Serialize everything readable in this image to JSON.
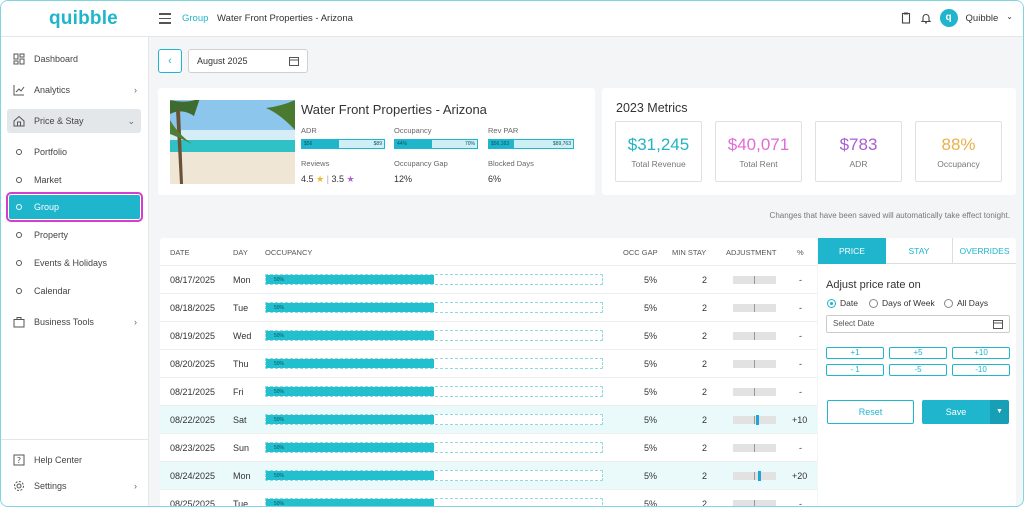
{
  "app": {
    "logo": "quibble"
  },
  "header": {
    "breadcrumb_root": "Group",
    "breadcrumb_current": "Water Front Properties - Arizona",
    "user": "Quibble",
    "avatar_letter": "q",
    "user_chevron": "⌄"
  },
  "sidebar": {
    "items": [
      {
        "label": "Dashboard",
        "icon": "dashboard-icon",
        "chevron": ""
      },
      {
        "label": "Analytics",
        "icon": "analytics-icon",
        "chevron": "›"
      },
      {
        "label": "Price & Stay",
        "icon": "price-stay-icon",
        "chevron": "⌄"
      },
      {
        "label": "Portfolio"
      },
      {
        "label": "Market"
      },
      {
        "label": "Group"
      },
      {
        "label": "Property"
      },
      {
        "label": "Events & Holidays"
      },
      {
        "label": "Calendar"
      },
      {
        "label": "Business Tools",
        "icon": "business-tools-icon",
        "chevron": "›"
      }
    ],
    "footer": [
      {
        "label": "Help Center",
        "icon": "help-icon",
        "chevron": ""
      },
      {
        "label": "Settings",
        "icon": "gear-icon",
        "chevron": "›"
      }
    ]
  },
  "toolbar": {
    "back": "‹",
    "month": "August 2025"
  },
  "property": {
    "title": "Water Front Properties - Arizona",
    "adr": {
      "label": "ADR",
      "min": "$56",
      "max": "$89",
      "fill": 0.45
    },
    "occupancy": {
      "label": "Occupancy",
      "min": "44%",
      "max": "70%",
      "fill": 0.45
    },
    "revpar": {
      "label": "Rev PAR",
      "min": "$56,163",
      "max": "$89,763",
      "fill": 0.3
    },
    "reviews": {
      "label": "Reviews",
      "a": "4.5",
      "b": "3.5",
      "star": "★",
      "sep": "|"
    },
    "occ_gap": {
      "label": "Occupancy Gap",
      "value": "12%"
    },
    "blocked": {
      "label": "Blocked Days",
      "value": "6%"
    }
  },
  "metrics": {
    "title": "2023 Metrics",
    "items": [
      {
        "value": "$31,245",
        "label": "Total Revenue",
        "color": "#22b3c4"
      },
      {
        "value": "$40,071",
        "label": "Total Rent",
        "color": "#e06cd8"
      },
      {
        "value": "$783",
        "label": "ADR",
        "color": "#a85fd1"
      },
      {
        "value": "88%",
        "label": "Occupancy",
        "color": "#e8b14a"
      }
    ]
  },
  "notice": "Changes that have been saved will automatically take effect tonight.",
  "table": {
    "headers": {
      "date": "DATE",
      "day": "DAY",
      "occupancy": "OCCUPANCY",
      "gap": "OCC GAP",
      "stay": "MIN STAY",
      "adj": "ADJUSTMENT",
      "pct": "%"
    },
    "rows": [
      {
        "date": "08/17/2025",
        "day": "Mon",
        "occ": "50%",
        "occ_value": 0.5,
        "gap": "5%",
        "stay": "2",
        "adj": 0,
        "pct": "-"
      },
      {
        "date": "08/18/2025",
        "day": "Tue",
        "occ": "50%",
        "occ_value": 0.5,
        "gap": "5%",
        "stay": "2",
        "adj": 0,
        "pct": "-"
      },
      {
        "date": "08/19/2025",
        "day": "Wed",
        "occ": "50%",
        "occ_value": 0.5,
        "gap": "5%",
        "stay": "2",
        "adj": 0,
        "pct": "-"
      },
      {
        "date": "08/20/2025",
        "day": "Thu",
        "occ": "50%",
        "occ_value": 0.5,
        "gap": "5%",
        "stay": "2",
        "adj": 0,
        "pct": "-"
      },
      {
        "date": "08/21/2025",
        "day": "Fri",
        "occ": "50%",
        "occ_value": 0.5,
        "gap": "5%",
        "stay": "2",
        "adj": 0,
        "pct": "-"
      },
      {
        "date": "08/22/2025",
        "day": "Sat",
        "occ": "50%",
        "occ_value": 0.5,
        "gap": "5%",
        "stay": "2",
        "adj": 10,
        "pct": "+10"
      },
      {
        "date": "08/23/2025",
        "day": "Sun",
        "occ": "50%",
        "occ_value": 0.5,
        "gap": "5%",
        "stay": "2",
        "adj": 0,
        "pct": "-"
      },
      {
        "date": "08/24/2025",
        "day": "Mon",
        "occ": "50%",
        "occ_value": 0.5,
        "gap": "5%",
        "stay": "2",
        "adj": 20,
        "pct": "+20"
      },
      {
        "date": "08/25/2025",
        "day": "Tue",
        "occ": "50%",
        "occ_value": 0.5,
        "gap": "5%",
        "stay": "2",
        "adj": 0,
        "pct": "-"
      }
    ]
  },
  "panel": {
    "tabs": [
      "PRICE",
      "STAY",
      "OVERRIDES"
    ],
    "heading": "Adjust price rate on",
    "radios": [
      {
        "label": "Date",
        "checked": true
      },
      {
        "label": "Days of Week",
        "checked": false
      },
      {
        "label": "All Days",
        "checked": false
      }
    ],
    "date_placeholder": "Select Date",
    "steps": [
      "+1",
      "+5",
      "+10",
      "- 1",
      "-5",
      "-10"
    ],
    "reset": "Reset",
    "save": "Save",
    "save_dropdown": "▼"
  },
  "colors": {
    "accent": "#1fb5cc",
    "highlight": "#d63ccf"
  }
}
